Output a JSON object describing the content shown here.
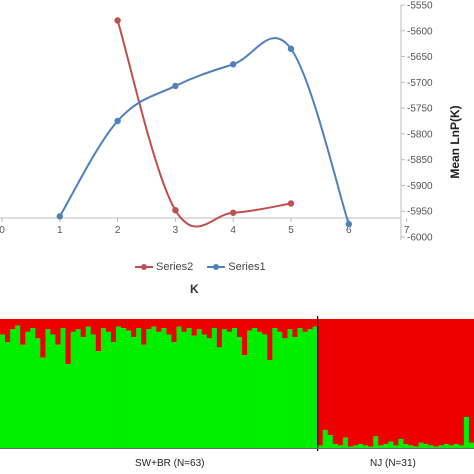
{
  "chart_data": [
    {
      "type": "line",
      "x": [
        1,
        2,
        3,
        4,
        5,
        6
      ],
      "series": [
        {
          "name": "Series2",
          "color": "#c0504d",
          "x": [
            2,
            3,
            4,
            5
          ],
          "values": [
            -5580,
            -5948,
            -5953,
            -5935
          ]
        },
        {
          "name": "Series1",
          "color": "#4f81bd",
          "x": [
            1,
            2,
            3,
            4,
            5,
            6
          ],
          "values": [
            -5960,
            -5775,
            -5707,
            -5665,
            -5635,
            -5975
          ]
        }
      ],
      "xlabel": "K",
      "ylabel": "Mean LnP(K)",
      "xticks": [
        "0",
        "1",
        "2",
        "3",
        "4",
        "5",
        "6",
        "7"
      ],
      "yticks": [
        "-5550",
        "-5600",
        "-5650",
        "-5700",
        "-5750",
        "-5800",
        "-5850",
        "-5900",
        "-5950",
        "-6000"
      ],
      "xlim": [
        0,
        7
      ],
      "ylim": [
        -6000,
        -5550
      ],
      "grid": false,
      "legend_position": "bottom",
      "left_axis_tick_visible": "0"
    },
    {
      "type": "bar",
      "stacked": true,
      "colors": {
        "cluster_green": "#00ee00",
        "cluster_red": "#ee0000"
      },
      "groups": [
        {
          "label": "SW+BR (N=63)",
          "n": 63
        },
        {
          "label": "NJ (N=31)",
          "n": 31
        }
      ],
      "green_fraction": [
        0.88,
        0.82,
        0.92,
        0.95,
        0.8,
        0.9,
        0.93,
        0.85,
        0.7,
        0.92,
        0.88,
        0.8,
        0.93,
        0.65,
        0.9,
        0.92,
        0.86,
        0.94,
        0.88,
        0.75,
        0.93,
        0.9,
        0.82,
        0.94,
        0.93,
        0.91,
        0.86,
        0.93,
        0.8,
        0.92,
        0.94,
        0.9,
        0.93,
        0.88,
        0.82,
        0.94,
        0.9,
        0.93,
        0.87,
        0.92,
        0.88,
        0.85,
        0.93,
        0.78,
        0.92,
        0.9,
        0.93,
        0.86,
        0.72,
        0.91,
        0.93,
        0.9,
        0.88,
        0.68,
        0.93,
        0.9,
        0.85,
        0.92,
        0.86,
        0.93,
        0.9,
        0.92,
        0.94,
        0.02,
        0.14,
        0.1,
        0.03,
        0.02,
        0.08,
        0.01,
        0.02,
        0.03,
        0.02,
        0.01,
        0.09,
        0.02,
        0.03,
        0.05,
        0.02,
        0.07,
        0.03,
        0.02,
        0.01,
        0.04,
        0.03,
        0.02,
        0.01,
        0.02,
        0.03,
        0.02,
        0.03,
        0.02,
        0.24,
        0.04
      ]
    }
  ]
}
